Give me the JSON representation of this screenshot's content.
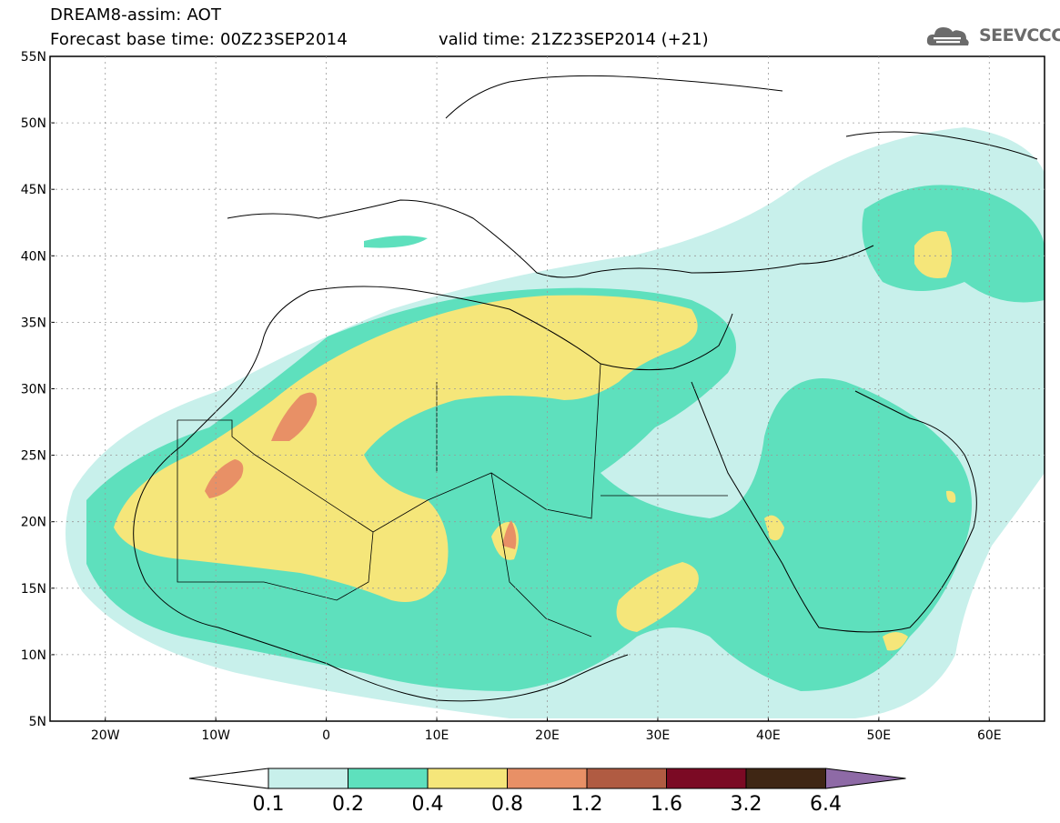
{
  "header": {
    "line1": "DREAM8-assim: AOT",
    "line2": "Forecast base time: 00Z23SEP2014",
    "line3": "valid time: 21Z23SEP2014 (+21)"
  },
  "logo": {
    "text": "SEEVCCC",
    "icon": "cloud-icon"
  },
  "map": {
    "lat_labels": [
      "55N",
      "50N",
      "45N",
      "40N",
      "35N",
      "30N",
      "25N",
      "20N",
      "15N",
      "10N",
      "5N"
    ],
    "lon_labels": [
      "20W",
      "10W",
      "0",
      "10E",
      "20E",
      "30E",
      "40E",
      "50E",
      "60E"
    ],
    "lat_range": [
      5,
      55
    ],
    "lon_range": [
      -25,
      65
    ],
    "grid": true,
    "colors": {
      "land_border": "#000000",
      "level1": "#c8f0eb",
      "level2": "#5ee0bd",
      "level3": "#f5e67a",
      "level4": "#e89066",
      "level5": "#b05b42"
    }
  },
  "colorbar": {
    "labels": [
      "0.1",
      "0.2",
      "0.4",
      "0.8",
      "1.2",
      "1.6",
      "3.2",
      "6.4"
    ],
    "colors": [
      "#c8f0eb",
      "#5ee0bd",
      "#f5e67a",
      "#e89066",
      "#b05b42",
      "#7b0a24",
      "#3f2614",
      "#8e6aa6"
    ]
  }
}
